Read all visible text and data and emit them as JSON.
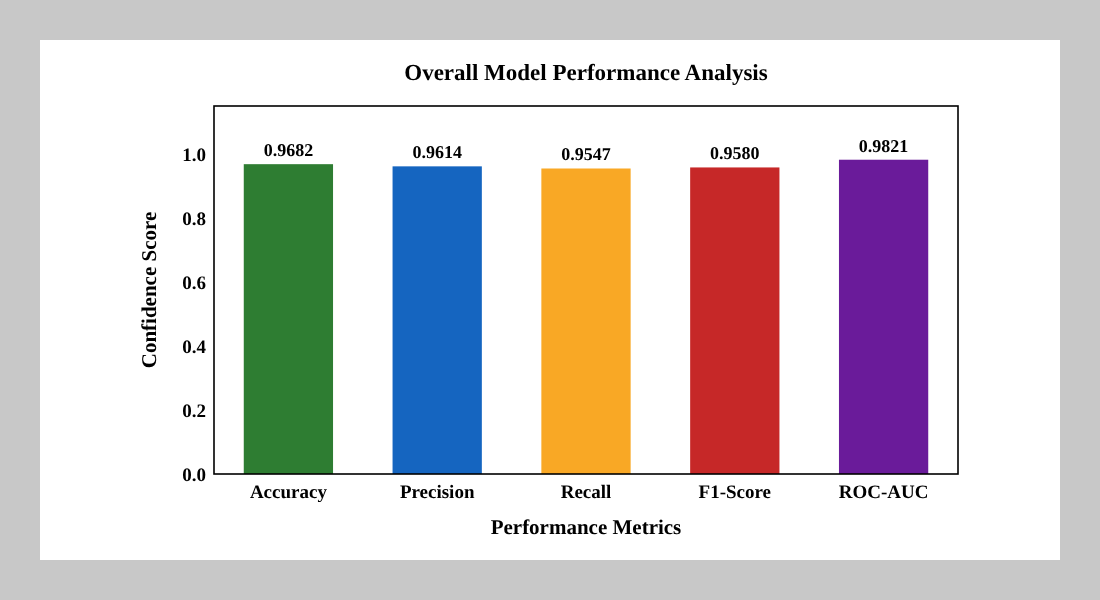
{
  "chart_data": {
    "type": "bar",
    "title": "Overall Model Performance Analysis",
    "xlabel": "Performance Metrics",
    "ylabel": "Confidence Score",
    "categories": [
      "Accuracy",
      "Precision",
      "Recall",
      "F1-Score",
      "ROC-AUC"
    ],
    "values": [
      0.9682,
      0.9614,
      0.9547,
      0.958,
      0.9821
    ],
    "colors": [
      "#2e7d32",
      "#1565c0",
      "#f9a825",
      "#c62828",
      "#6a1b9a"
    ],
    "ylim": [
      0,
      1.15
    ],
    "yticks": [
      {
        "value": 0,
        "label": "0.0"
      },
      0.2,
      0.4,
      0.6,
      0.8,
      {
        "value": 1,
        "label": "1.0"
      }
    ],
    "value_labels": [
      "0.9682",
      "0.9614",
      "0.9547",
      "0.9580",
      "0.9821"
    ],
    "grid": false
  }
}
